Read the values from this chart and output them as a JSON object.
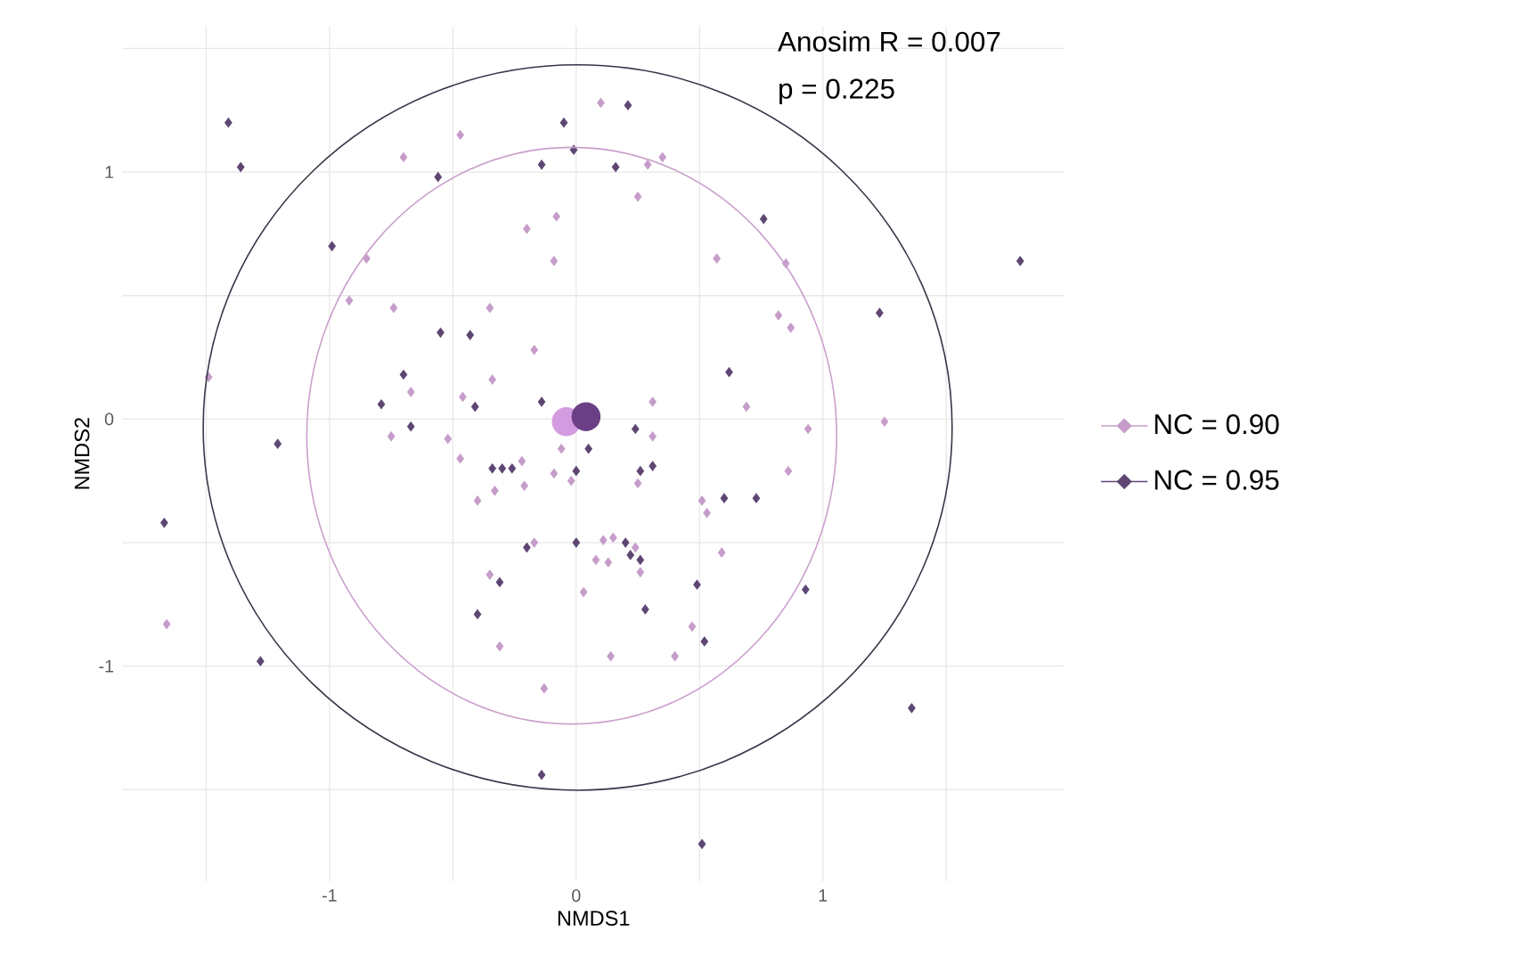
{
  "chart_data": {
    "type": "scatter",
    "xlabel": "NMDS1",
    "ylabel": "NMDS2",
    "annotations": [
      "Anosim R = 0.007",
      "p = 0.225"
    ],
    "xlim": [
      -1.84,
      1.98
    ],
    "ylim": [
      -1.87,
      1.59
    ],
    "xticks": [
      {
        "value": -1.5,
        "label": null
      },
      -1,
      {
        "value": -0.5,
        "label": null
      },
      0,
      {
        "value": 0.5,
        "label": null
      },
      1,
      {
        "value": 1.5,
        "label": null
      }
    ],
    "yticks": [
      {
        "value": -1.5,
        "label": null
      },
      -1,
      {
        "value": -0.5,
        "label": null
      },
      0,
      {
        "value": 0.5,
        "label": null
      },
      1,
      {
        "value": 1.5,
        "label": null
      }
    ],
    "grid": true,
    "legend": "right",
    "series": [
      {
        "name": "NC = 0.90",
        "marker": "diamond",
        "color": "#c69dca",
        "x": [
          -0.47,
          -0.7,
          -0.2,
          -0.08,
          -0.09,
          -0.85,
          -0.92,
          -0.74,
          -0.35,
          -0.17,
          -0.34,
          -0.67,
          -0.46,
          -0.75,
          -0.52,
          -1.49,
          -0.06,
          0.1,
          0.29,
          0.35,
          0.25,
          0.57,
          0.85,
          0.82,
          0.87,
          0.31,
          0.69,
          0.31,
          0.94,
          1.25,
          -0.47,
          -0.22,
          -0.09,
          -0.02,
          -0.21,
          -0.33,
          -0.4,
          -0.17,
          -0.35,
          -0.31,
          -0.13,
          -1.66,
          0.03,
          0.25,
          0.86,
          0.51,
          0.53,
          0.11,
          0.15,
          0.24,
          0.08,
          0.13,
          0.26,
          0.59,
          0.47,
          0.14,
          0.4
        ],
        "values": [
          1.15,
          1.06,
          0.77,
          0.82,
          0.64,
          0.65,
          0.48,
          0.45,
          0.45,
          0.28,
          0.16,
          0.11,
          0.09,
          -0.07,
          -0.08,
          0.17,
          -0.12,
          1.28,
          1.03,
          1.06,
          0.9,
          0.65,
          0.63,
          0.42,
          0.37,
          0.07,
          0.05,
          -0.07,
          -0.04,
          -0.01,
          -0.16,
          -0.17,
          -0.22,
          -0.25,
          -0.27,
          -0.29,
          -0.33,
          -0.5,
          -0.63,
          -0.92,
          -1.09,
          -0.83,
          -0.7,
          -0.26,
          -0.21,
          -0.33,
          -0.38,
          -0.49,
          -0.48,
          -0.52,
          -0.57,
          -0.58,
          -0.62,
          -0.54,
          -0.84,
          -0.96,
          -0.96
        ]
      },
      {
        "name": "NC = 0.95",
        "marker": "diamond",
        "color": "#5e4673",
        "x": [
          -1.41,
          -1.36,
          -0.05,
          -0.01,
          -0.14,
          -0.56,
          -0.99,
          -0.55,
          -0.43,
          -0.7,
          -0.79,
          -0.41,
          -0.14,
          -0.67,
          -1.21,
          0.21,
          0.16,
          0.76,
          1.8,
          1.23,
          0.62,
          0.24,
          0.05,
          -1.67,
          -1.28,
          -0.34,
          -0.3,
          -0.26,
          0.0,
          -0.2,
          0.0,
          -0.31,
          -0.4,
          -0.14,
          0.26,
          0.31,
          0.6,
          0.73,
          0.2,
          0.22,
          0.26,
          0.49,
          0.93,
          0.28,
          0.52,
          1.36,
          0.51
        ],
        "values": [
          1.2,
          1.02,
          1.2,
          1.09,
          1.03,
          0.98,
          0.7,
          0.35,
          0.34,
          0.18,
          0.06,
          0.05,
          0.07,
          -0.03,
          -0.1,
          1.27,
          1.02,
          0.81,
          0.64,
          0.43,
          0.19,
          -0.04,
          -0.12,
          -0.42,
          -0.98,
          -0.2,
          -0.2,
          -0.2,
          -0.21,
          -0.52,
          -0.5,
          -0.66,
          -0.79,
          -1.44,
          -0.21,
          -0.19,
          -0.32,
          -0.32,
          -0.5,
          -0.55,
          -0.57,
          -0.67,
          -0.69,
          -0.77,
          -0.9,
          -1.17,
          -1.72
        ]
      },
      {
        "marker": "circle",
        "color": "#d39be0",
        "x": [
          -0.04
        ],
        "values": [
          -0.01
        ]
      },
      {
        "marker": "circle",
        "color": "#6a3f85",
        "x": [
          0.04
        ],
        "values": [
          0.01
        ]
      }
    ]
  }
}
